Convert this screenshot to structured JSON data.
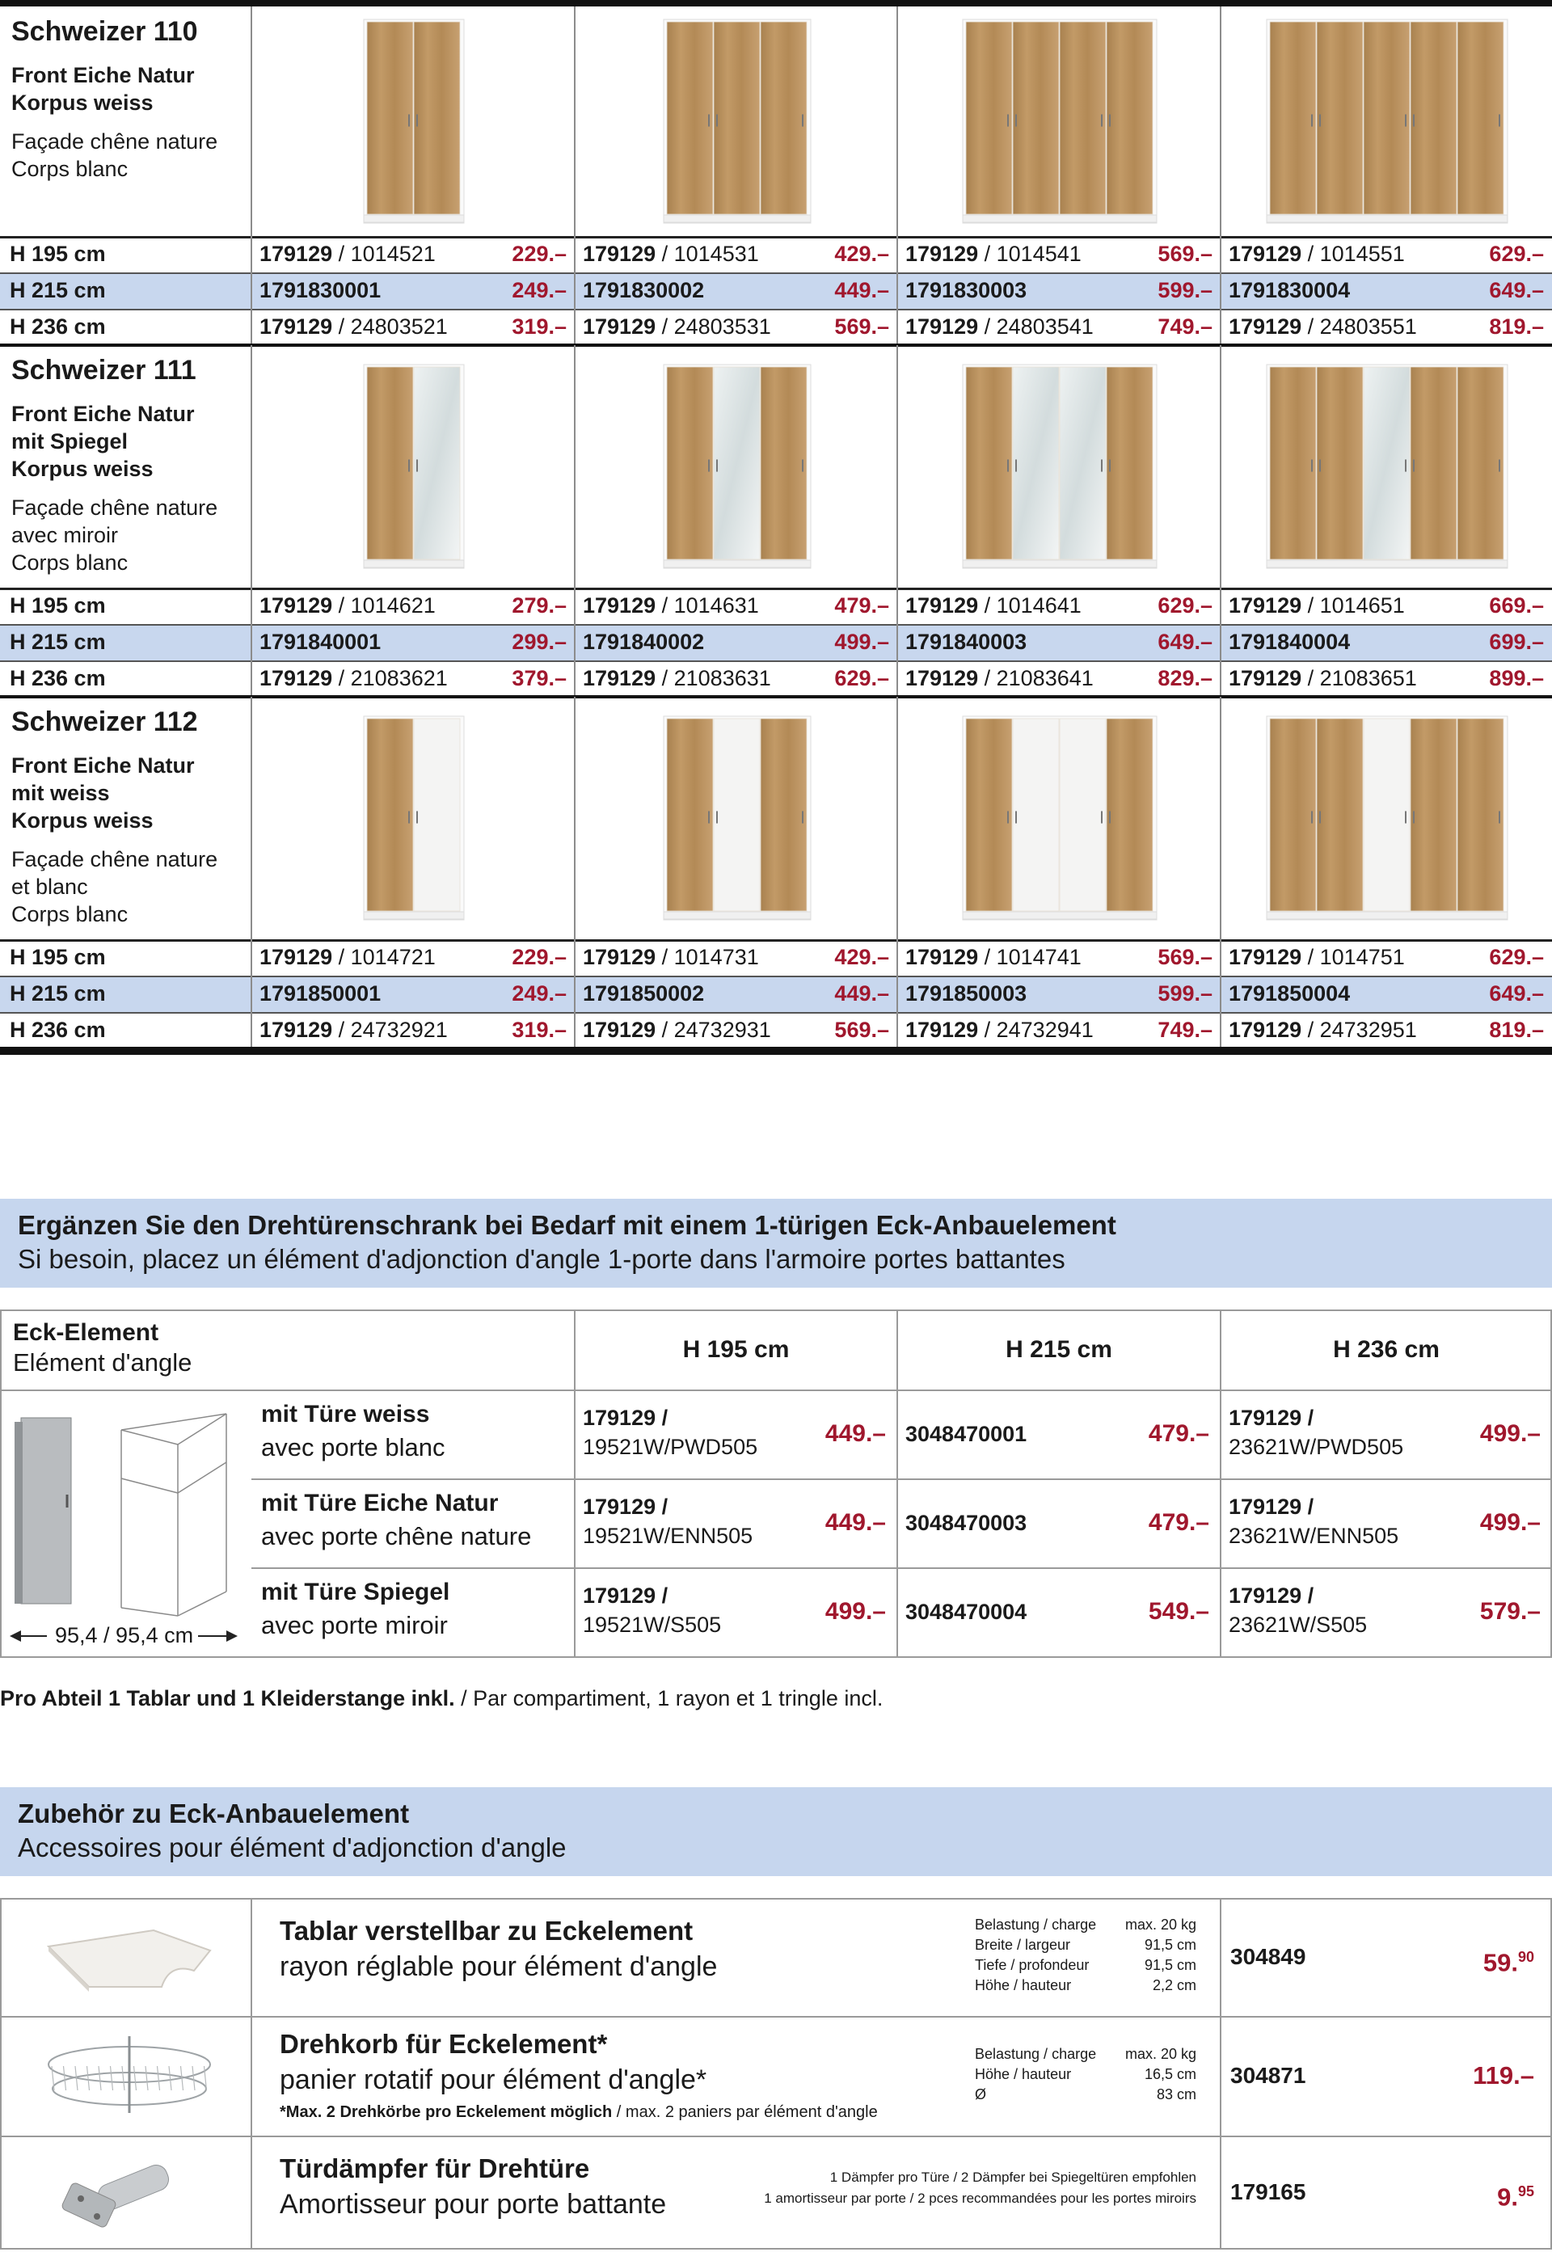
{
  "products": [
    {
      "name": "Schweizer 110",
      "de": [
        "Front Eiche Natur",
        "Korpus weiss"
      ],
      "fr": [
        "Façade chêne nature",
        "Corps blanc"
      ],
      "rows": [
        {
          "label": "H 195 cm",
          "cells": [
            {
              "code": "179129",
              "suffix": "/ 1014521",
              "price": "229.–"
            },
            {
              "code": "179129",
              "suffix": "/ 1014531",
              "price": "429.–"
            },
            {
              "code": "179129",
              "suffix": "/ 1014541",
              "price": "569.–"
            },
            {
              "code": "179129",
              "suffix": "/ 1014551",
              "price": "629.–"
            }
          ]
        },
        {
          "label": "H 215 cm",
          "cells": [
            {
              "code": "1791830001",
              "price": "249.–"
            },
            {
              "code": "1791830002",
              "price": "449.–"
            },
            {
              "code": "1791830003",
              "price": "599.–"
            },
            {
              "code": "1791830004",
              "price": "649.–"
            }
          ]
        },
        {
          "label": "H 236 cm",
          "cells": [
            {
              "code": "179129",
              "suffix": "/ 24803521",
              "price": "319.–"
            },
            {
              "code": "179129",
              "suffix": "/ 24803531",
              "price": "569.–"
            },
            {
              "code": "179129",
              "suffix": "/ 24803541",
              "price": "749.–"
            },
            {
              "code": "179129",
              "suffix": "/ 24803551",
              "price": "819.–"
            }
          ]
        }
      ]
    },
    {
      "name": "Schweizer 111",
      "de": [
        "Front Eiche Natur",
        "mit Spiegel",
        "Korpus weiss"
      ],
      "fr": [
        "Façade chêne nature",
        "avec miroir",
        "Corps blanc"
      ],
      "rows": [
        {
          "label": "H 195 cm",
          "cells": [
            {
              "code": "179129",
              "suffix": "/ 1014621",
              "price": "279.–"
            },
            {
              "code": "179129",
              "suffix": "/ 1014631",
              "price": "479.–"
            },
            {
              "code": "179129",
              "suffix": "/ 1014641",
              "price": "629.–"
            },
            {
              "code": "179129",
              "suffix": "/ 1014651",
              "price": "669.–"
            }
          ]
        },
        {
          "label": "H 215 cm",
          "cells": [
            {
              "code": "1791840001",
              "price": "299.–"
            },
            {
              "code": "1791840002",
              "price": "499.–"
            },
            {
              "code": "1791840003",
              "price": "649.–"
            },
            {
              "code": "1791840004",
              "price": "699.–"
            }
          ]
        },
        {
          "label": "H 236 cm",
          "cells": [
            {
              "code": "179129",
              "suffix": "/ 21083621",
              "price": "379.–"
            },
            {
              "code": "179129",
              "suffix": "/ 21083631",
              "price": "629.–"
            },
            {
              "code": "179129",
              "suffix": "/ 21083641",
              "price": "829.–"
            },
            {
              "code": "179129",
              "suffix": "/ 21083651",
              "price": "899.–"
            }
          ]
        }
      ]
    },
    {
      "name": "Schweizer 112",
      "de": [
        "Front Eiche Natur",
        "mit weiss",
        "Korpus weiss"
      ],
      "fr": [
        "Façade chêne nature",
        "et blanc",
        "Corps blanc"
      ],
      "rows": [
        {
          "label": "H 195 cm",
          "cells": [
            {
              "code": "179129",
              "suffix": "/ 1014721",
              "price": "229.–"
            },
            {
              "code": "179129",
              "suffix": "/ 1014731",
              "price": "429.–"
            },
            {
              "code": "179129",
              "suffix": "/ 1014741",
              "price": "569.–"
            },
            {
              "code": "179129",
              "suffix": "/ 1014751",
              "price": "629.–"
            }
          ]
        },
        {
          "label": "H 215 cm",
          "cells": [
            {
              "code": "1791850001",
              "price": "249.–"
            },
            {
              "code": "1791850002",
              "price": "449.–"
            },
            {
              "code": "1791850003",
              "price": "599.–"
            },
            {
              "code": "1791850004",
              "price": "649.–"
            }
          ]
        },
        {
          "label": "H 236 cm",
          "cells": [
            {
              "code": "179129",
              "suffix": "/ 24732921",
              "price": "319.–"
            },
            {
              "code": "179129",
              "suffix": "/ 24732931",
              "price": "569.–"
            },
            {
              "code": "179129",
              "suffix": "/ 24732941",
              "price": "749.–"
            },
            {
              "code": "179129",
              "suffix": "/ 24732951",
              "price": "819.–"
            }
          ]
        }
      ]
    }
  ],
  "corner": {
    "banner_de": "Ergänzen Sie den Drehtürenschrank bei Bedarf mit einem 1-türigen Eck-Anbauelement",
    "banner_fr": "Si besoin, placez un élément d'adjonction d'angle 1-porte dans l'armoire portes battantes",
    "title_de": "Eck-Element",
    "title_fr": "Elément d'angle",
    "columns": [
      "H 195 cm",
      "H 215 cm",
      "H 236 cm"
    ],
    "dimension": "95,4 / 95,4 cm",
    "rows": [
      {
        "de": "mit Türe weiss",
        "fr": "avec porte blanc",
        "cells": [
          {
            "code": "179129 /",
            "sub": "19521W/PWD505",
            "price": "449.–"
          },
          {
            "code": "3048470001",
            "price": "479.–"
          },
          {
            "code": "179129 /",
            "sub": "23621W/PWD505",
            "price": "499.–"
          }
        ]
      },
      {
        "de": "mit Türe Eiche Natur",
        "fr": "avec porte chêne nature",
        "cells": [
          {
            "code": "179129 /",
            "sub": "19521W/ENN505",
            "price": "449.–"
          },
          {
            "code": "3048470003",
            "price": "479.–"
          },
          {
            "code": "179129 /",
            "sub": "23621W/ENN505",
            "price": "499.–"
          }
        ]
      },
      {
        "de": "mit Türe Spiegel",
        "fr": "avec porte miroir",
        "cells": [
          {
            "code": "179129 /",
            "sub": "19521W/S505",
            "price": "499.–"
          },
          {
            "code": "3048470004",
            "price": "549.–"
          },
          {
            "code": "179129 /",
            "sub": "23621W/S505",
            "price": "579.–"
          }
        ]
      }
    ],
    "note_bold": "Pro Abteil 1 Tablar und 1 Kleiderstange inkl.",
    "note": " / Par compartiment, 1 rayon et 1 tringle incl."
  },
  "accessories": {
    "banner_de": "Zubehör zu Eck-Anbauelement",
    "banner_fr": "Accessoires pour élément d'adjonction d'angle",
    "items": [
      {
        "title": "Tablar verstellbar zu Eckelement",
        "sub": "rayon réglable pour élément d'angle",
        "specs": [
          [
            "Belastung / charge",
            "max. 20 kg"
          ],
          [
            "Breite / largeur",
            "91,5 cm"
          ],
          [
            "Tiefe / profondeur",
            "91,5 cm"
          ],
          [
            "Höhe / hauteur",
            "2,2 cm"
          ]
        ],
        "code": "304849",
        "price": "59.",
        "cents": "90"
      },
      {
        "title": "Drehkorb für Eckelement*",
        "sub": "panier rotatif pour élément d'angle*",
        "specs": [
          [
            "Belastung / charge",
            "max. 20 kg"
          ],
          [
            "Höhe / hauteur",
            "16,5 cm"
          ],
          [
            "Ø",
            "83 cm"
          ]
        ],
        "note_bold": "*Max. 2 Drehkörbe pro Eckelement möglich",
        "note": " / max. 2 paniers par élément d'angle",
        "code": "304871",
        "price": "119.–"
      },
      {
        "title": "Türdämpfer für Drehtüre",
        "sub": "Amortisseur pour porte battante",
        "notes": [
          "1 Dämpfer pro Türe / 2 Dämpfer bei Spiegeltüren empfohlen",
          "1 amortisseur par porte / 2 pces recommandées pour les portes miroirs"
        ],
        "code": "179165",
        "price": "9.",
        "cents": "95"
      }
    ]
  }
}
